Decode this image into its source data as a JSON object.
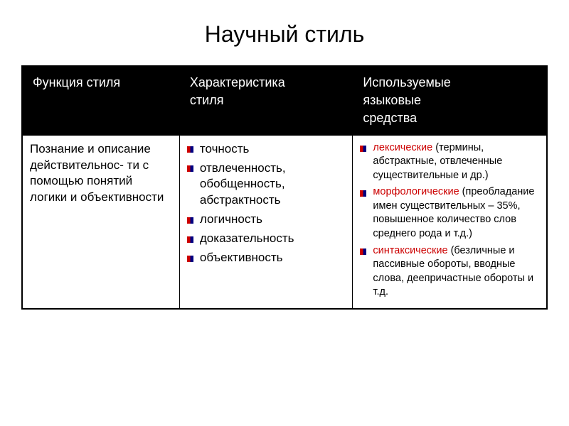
{
  "title": "Научный стиль",
  "headers": {
    "c1": "Функция стиля",
    "c2_l1": "Характеристика",
    "c2_l2": "стиля",
    "c3_l1": "Используемые",
    "c3_l2": "языковые",
    "c3_l3": "средства"
  },
  "body": {
    "c1": "Познание и описание действительнос- ти с помощью понятий логики и объективности",
    "c2": {
      "i1": "точность",
      "i2": " отвлеченность, обобщенность, абстрактность",
      "i3": "логичность",
      "i4": "доказательность",
      "i5": "объективность"
    },
    "c3": {
      "i1_r": "лексические",
      "i1_rest": " (термины, абстрактные, отвлеченные существительные и др.)",
      "i2_r": "морфологические",
      "i2_rest": " (преобладание имен существительных – 35%, повышенное количество слов среднего рода и т.д.)",
      "i3_r": "синтаксические",
      "i3_rest": " (безличные и пассивные обороты, вводные слова, деепричастные обороты и т.д."
    }
  },
  "colors": {
    "header_bg": "#000000",
    "header_text": "#ffffff",
    "body_bg": "#ffffff",
    "body_text": "#000000",
    "accent_red": "#cc0000",
    "bullet_blue": "#000080",
    "border": "#000000"
  },
  "layout": {
    "type": "table",
    "columns": 3,
    "col_widths_pct": [
      30,
      33,
      37
    ],
    "title_fontsize": 32,
    "header_fontsize": 18,
    "body_fontsize": 17,
    "small_fontsize": 14.5
  }
}
